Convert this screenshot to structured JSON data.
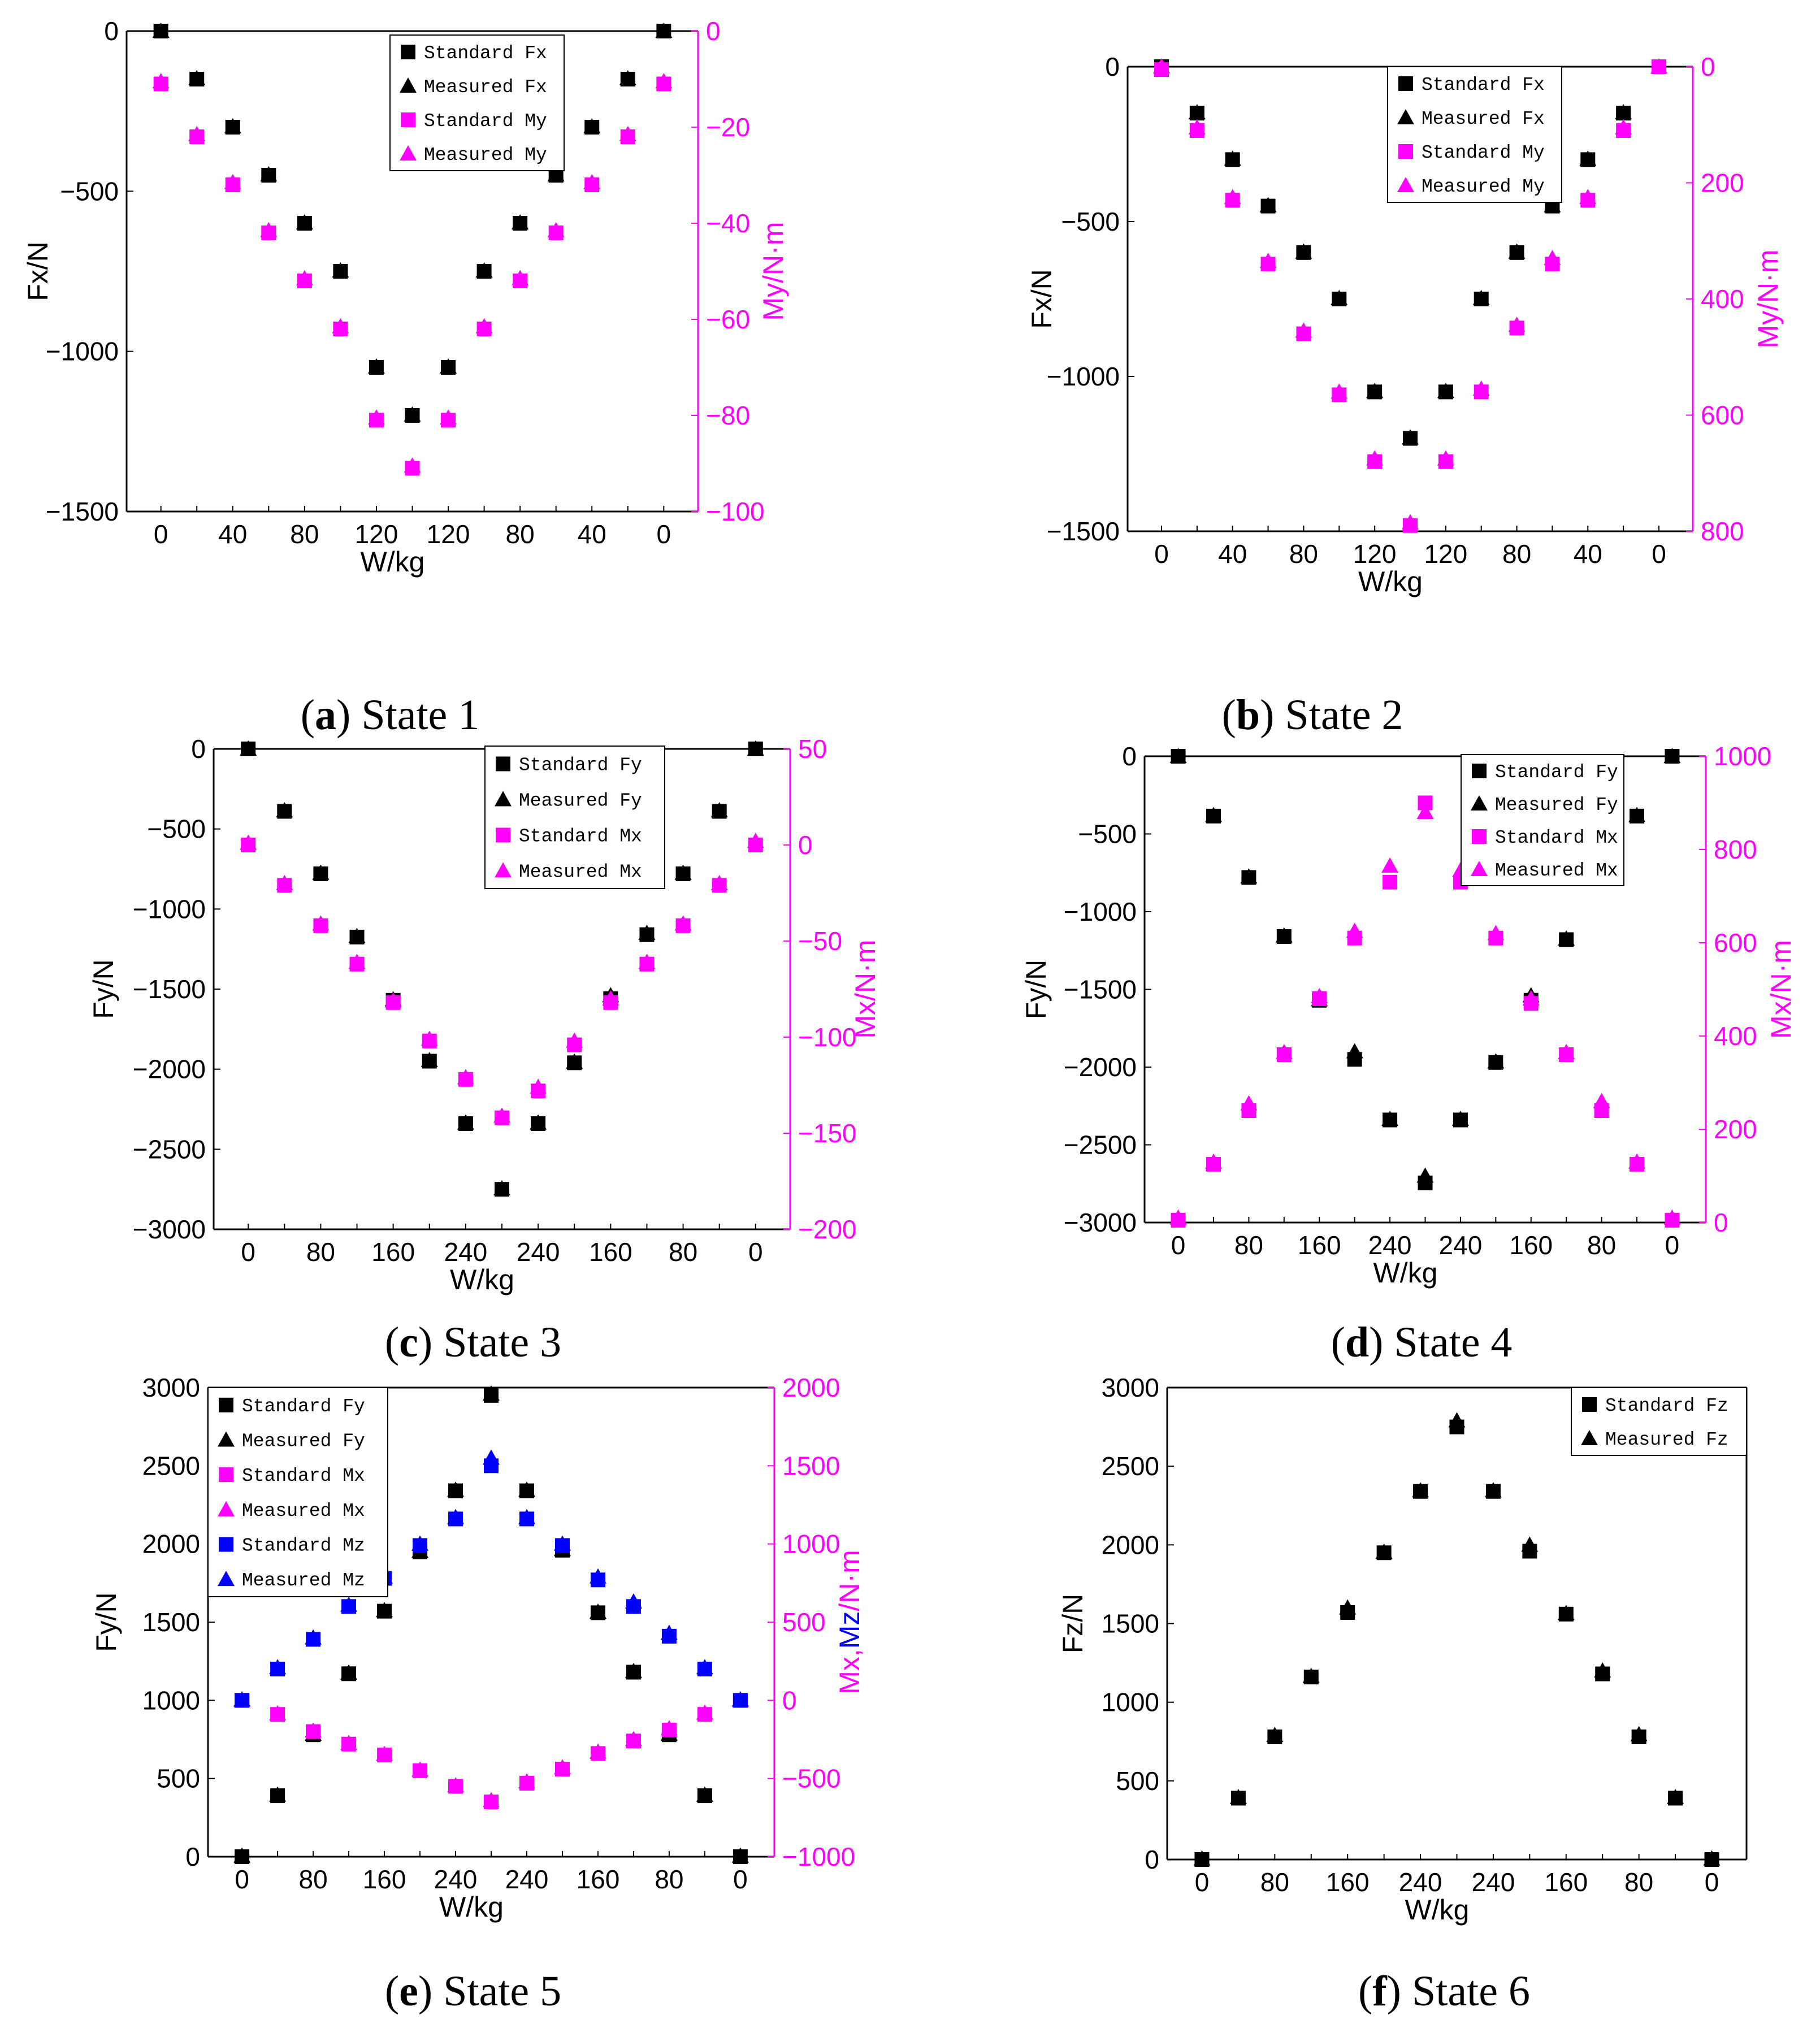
{
  "colors": {
    "black": "#000000",
    "magenta": "#ff00ff",
    "blue": "#0000ff"
  },
  "chart_data": [
    {
      "id": "a",
      "type": "scatter",
      "caption_letter": "a",
      "caption_text": " State 1",
      "xlabel": "W/kg",
      "ylabel": "Fx/N",
      "y2label": "My/N·m",
      "categories": [
        "0",
        "20",
        "40",
        "60",
        "80",
        "100",
        "120",
        "140",
        "120",
        "100",
        "80",
        "60",
        "40",
        "20",
        "0"
      ],
      "xticks": [
        "0",
        "",
        "40",
        "",
        "80",
        "",
        "120",
        "",
        "120",
        "",
        "80",
        "",
        "40",
        "",
        "0"
      ],
      "ylim": [
        -1500,
        0
      ],
      "yticks": [
        "0",
        "-500",
        "-1000",
        "-1500"
      ],
      "y2lim": [
        -100,
        0
      ],
      "y2ticks": [
        "0",
        "-20",
        "-40",
        "-60",
        "-80",
        "-100"
      ],
      "legend": [
        "Standard Fx",
        "Measured Fx",
        "Standard My",
        "Measured My"
      ],
      "series": [
        {
          "name": "Standard Fx",
          "axis": "left",
          "marker": "square",
          "color": "#000000",
          "values": [
            0,
            -150,
            -300,
            -450,
            -600,
            -750,
            -1050,
            -1200,
            -1050,
            -750,
            -600,
            -450,
            -300,
            -150,
            0
          ]
        },
        {
          "name": "Measured Fx",
          "axis": "left",
          "marker": "triangle",
          "color": "#000000",
          "values": [
            0,
            -148,
            -298,
            -448,
            -598,
            -748,
            -1048,
            -1198,
            -1048,
            -748,
            -598,
            -448,
            -298,
            -148,
            0
          ]
        },
        {
          "name": "Standard My",
          "axis": "right",
          "marker": "square",
          "color": "#ff00ff",
          "values": [
            -11,
            -22,
            -32,
            -42,
            -52,
            -62,
            -81,
            -91,
            -81,
            -62,
            -52,
            -42,
            -32,
            -22,
            -11
          ]
        },
        {
          "name": "Measured My",
          "axis": "right",
          "marker": "triangle",
          "color": "#ff00ff",
          "values": [
            -10.5,
            -21.5,
            -31.5,
            -41.5,
            -51.5,
            -61.5,
            -80.5,
            -90.5,
            -80.5,
            -61.5,
            -51.5,
            -41.5,
            -31.5,
            -21.5,
            -10.5
          ]
        }
      ]
    },
    {
      "id": "b",
      "type": "scatter",
      "caption_letter": "b",
      "caption_text": " State 2",
      "xlabel": "W/kg",
      "ylabel": "Fx/N",
      "y2label": "My/N·m",
      "categories": [
        "0",
        "20",
        "40",
        "60",
        "80",
        "100",
        "120",
        "140",
        "120",
        "100",
        "80",
        "60",
        "40",
        "20",
        "0"
      ],
      "xticks": [
        "0",
        "",
        "40",
        "",
        "80",
        "",
        "120",
        "",
        "120",
        "",
        "80",
        "",
        "40",
        "",
        "0"
      ],
      "ylim": [
        -1500,
        0
      ],
      "yticks": [
        "0",
        "-500",
        "-1000",
        "-1500"
      ],
      "y2lim": [
        800,
        0
      ],
      "y2ticks": [
        "0",
        "200",
        "400",
        "600",
        "800"
      ],
      "legend": [
        "Standard Fx",
        "Measured Fx",
        "Standard My",
        "Measured My"
      ],
      "series": [
        {
          "name": "Standard Fx",
          "axis": "left",
          "marker": "square",
          "color": "#000000",
          "values": [
            0,
            -150,
            -300,
            -450,
            -600,
            -750,
            -1050,
            -1200,
            -1050,
            -750,
            -600,
            -450,
            -300,
            -150,
            0
          ]
        },
        {
          "name": "Measured Fx",
          "axis": "left",
          "marker": "triangle",
          "color": "#000000",
          "values": [
            0,
            -148,
            -298,
            -448,
            -598,
            -748,
            -1048,
            -1198,
            -1048,
            -748,
            -598,
            -448,
            -298,
            -148,
            0
          ]
        },
        {
          "name": "Standard My",
          "axis": "right",
          "marker": "square",
          "color": "#ff00ff",
          "values": [
            5,
            110,
            230,
            340,
            460,
            565,
            680,
            790,
            680,
            560,
            450,
            340,
            230,
            110,
            0
          ]
        },
        {
          "name": "Measured My",
          "axis": "right",
          "marker": "triangle",
          "color": "#ff00ff",
          "values": [
            0,
            105,
            225,
            335,
            455,
            560,
            675,
            785,
            675,
            555,
            445,
            330,
            225,
            105,
            0
          ]
        }
      ]
    },
    {
      "id": "c",
      "type": "scatter",
      "caption_letter": "c",
      "caption_text": " State 3",
      "xlabel": "W/kg",
      "ylabel": "Fy/N",
      "y2label": "Mx/N·m",
      "categories": [
        "0",
        "40",
        "80",
        "120",
        "160",
        "200",
        "240",
        "280",
        "240",
        "200",
        "160",
        "120",
        "80",
        "40",
        "0"
      ],
      "xticks": [
        "0",
        "",
        "80",
        "",
        "160",
        "",
        "240",
        "",
        "240",
        "",
        "160",
        "",
        "80",
        "",
        "0"
      ],
      "ylim": [
        -3000,
        0
      ],
      "yticks": [
        "0",
        "-500",
        "-1000",
        "-1500",
        "-2000",
        "-2500",
        "-3000"
      ],
      "y2lim": [
        -200,
        50
      ],
      "y2ticks": [
        "50",
        "0",
        "-50",
        "-100",
        "-150",
        "-200"
      ],
      "legend": [
        "Standard Fy",
        "Measured Fy",
        "Standard Mx",
        "Measured Mx"
      ],
      "series": [
        {
          "name": "Standard Fy",
          "axis": "left",
          "marker": "square",
          "color": "#000000",
          "values": [
            0,
            -390,
            -780,
            -1175,
            -1570,
            -1950,
            -2340,
            -2750,
            -2340,
            -1960,
            -1560,
            -1160,
            -780,
            -390,
            0
          ]
        },
        {
          "name": "Measured Fy",
          "axis": "left",
          "marker": "triangle",
          "color": "#000000",
          "values": [
            0,
            -385,
            -775,
            -1170,
            -1565,
            -1945,
            -2335,
            -2745,
            -2335,
            -1955,
            -1540,
            -1150,
            -775,
            -385,
            0
          ]
        },
        {
          "name": "Standard Mx",
          "axis": "right",
          "marker": "square",
          "color": "#ff00ff",
          "values": [
            0,
            -21,
            -42,
            -62,
            -82,
            -102,
            -122,
            -142,
            -128,
            -104,
            -82,
            -62,
            -42,
            -21,
            0
          ]
        },
        {
          "name": "Measured Mx",
          "axis": "right",
          "marker": "triangle",
          "color": "#ff00ff",
          "values": [
            1,
            -20,
            -41,
            -61,
            -81,
            -101,
            -121,
            -141,
            -126,
            -102,
            -80,
            -61,
            -41,
            -20,
            2
          ]
        }
      ]
    },
    {
      "id": "d",
      "type": "scatter",
      "caption_letter": "d",
      "caption_text": " State 4",
      "xlabel": "W/kg",
      "ylabel": "Fy/N",
      "y2label": "Mx/N·m",
      "categories": [
        "0",
        "40",
        "80",
        "120",
        "160",
        "200",
        "240",
        "280",
        "240",
        "200",
        "160",
        "120",
        "80",
        "40",
        "0"
      ],
      "xticks": [
        "0",
        "",
        "80",
        "",
        "160",
        "",
        "240",
        "",
        "240",
        "",
        "160",
        "",
        "80",
        "",
        "0"
      ],
      "ylim": [
        -3000,
        0
      ],
      "yticks": [
        "0",
        "-500",
        "-1000",
        "-1500",
        "-2000",
        "-2500",
        "-3000"
      ],
      "y2lim": [
        0,
        1000
      ],
      "y2ticks": [
        "1000",
        "800",
        "600",
        "400",
        "200",
        "0"
      ],
      "legend": [
        "Standard Fy",
        "Measured Fy",
        "Standard Mx",
        "Measured Mx"
      ],
      "series": [
        {
          "name": "Standard Fy",
          "axis": "left",
          "marker": "square",
          "color": "#000000",
          "values": [
            0,
            -385,
            -780,
            -1160,
            -1570,
            -1950,
            -2340,
            -2745,
            -2340,
            -1970,
            -1570,
            -1180,
            -780,
            -385,
            0
          ]
        },
        {
          "name": "Measured Fy",
          "axis": "left",
          "marker": "triangle",
          "color": "#000000",
          "values": [
            0,
            -380,
            -775,
            -1155,
            -1565,
            -1900,
            -2335,
            -2700,
            -2335,
            -1965,
            -1540,
            -1175,
            -775,
            -380,
            0
          ]
        },
        {
          "name": "Standard Mx",
          "axis": "right",
          "marker": "square",
          "color": "#ff00ff",
          "values": [
            5,
            125,
            240,
            360,
            480,
            610,
            730,
            900,
            730,
            610,
            470,
            360,
            240,
            125,
            5
          ]
        },
        {
          "name": "Measured Mx",
          "axis": "right",
          "marker": "triangle",
          "color": "#ff00ff",
          "values": [
            10,
            130,
            255,
            365,
            485,
            625,
            765,
            880,
            755,
            620,
            480,
            365,
            260,
            130,
            10
          ]
        }
      ]
    },
    {
      "id": "e",
      "type": "scatter",
      "caption_letter": "e",
      "caption_text": " State 5",
      "xlabel": "W/kg",
      "ylabel": "Fy/N",
      "y2label": "Mx,Mz/N·m",
      "categories": [
        "0",
        "40",
        "80",
        "120",
        "160",
        "200",
        "240",
        "280",
        "240",
        "200",
        "160",
        "120",
        "80",
        "40",
        "0"
      ],
      "xticks": [
        "0",
        "",
        "80",
        "",
        "160",
        "",
        "240",
        "",
        "240",
        "",
        "160",
        "",
        "80",
        "",
        "0"
      ],
      "ylim": [
        0,
        3000
      ],
      "yticks": [
        "3000",
        "2500",
        "2000",
        "1500",
        "1000",
        "500",
        "0"
      ],
      "y2lim": [
        -1000,
        2000
      ],
      "y2ticks": [
        "2000",
        "1500",
        "1000",
        "500",
        "0",
        "-500",
        "-1000"
      ],
      "legend": [
        "Standard Fy",
        "Measured Fy",
        "Standard Mx",
        "Measured Mx",
        "Standard Mz",
        "Measured Mz"
      ],
      "series": [
        {
          "name": "Standard Fy",
          "axis": "left",
          "marker": "square",
          "color": "#000000",
          "values": [
            0,
            390,
            780,
            1170,
            1570,
            1950,
            2340,
            2950,
            2340,
            1960,
            1560,
            1180,
            780,
            390,
            0
          ]
        },
        {
          "name": "Measured Fy",
          "axis": "left",
          "marker": "triangle",
          "color": "#000000",
          "values": [
            5,
            395,
            785,
            1175,
            1575,
            1955,
            2345,
            2960,
            2345,
            1965,
            1565,
            1185,
            785,
            395,
            5
          ]
        },
        {
          "name": "Standard Mx",
          "axis": "right",
          "marker": "square",
          "color": "#ff00ff",
          "values": [
            0,
            -90,
            -200,
            -280,
            -350,
            -450,
            -550,
            -650,
            -530,
            -440,
            -340,
            -260,
            -190,
            -90,
            0
          ]
        },
        {
          "name": "Measured Mx",
          "axis": "right",
          "marker": "triangle",
          "color": "#ff00ff",
          "values": [
            0,
            -85,
            -195,
            -275,
            -345,
            -445,
            -545,
            -640,
            -520,
            -430,
            -330,
            -250,
            -180,
            -80,
            0
          ]
        },
        {
          "name": "Standard Mz",
          "axis": "right",
          "marker": "square",
          "color": "#0000ff",
          "values": [
            0,
            200,
            390,
            600,
            780,
            990,
            1160,
            1500,
            1160,
            990,
            770,
            600,
            410,
            200,
            0
          ]
        },
        {
          "name": "Measured Mz",
          "axis": "right",
          "marker": "triangle",
          "color": "#0000ff",
          "values": [
            5,
            210,
            400,
            610,
            790,
            1000,
            1170,
            1550,
            1170,
            1000,
            790,
            630,
            430,
            210,
            5
          ]
        }
      ]
    },
    {
      "id": "f",
      "type": "scatter",
      "caption_letter": "f",
      "caption_text": " State 6",
      "xlabel": "W/kg",
      "ylabel": "Fz/N",
      "y2label": "",
      "categories": [
        "0",
        "40",
        "80",
        "120",
        "160",
        "200",
        "240",
        "280",
        "240",
        "200",
        "160",
        "120",
        "80",
        "40",
        "0"
      ],
      "xticks": [
        "0",
        "",
        "80",
        "",
        "160",
        "",
        "240",
        "",
        "240",
        "",
        "160",
        "",
        "80",
        "",
        "0"
      ],
      "ylim": [
        0,
        3000
      ],
      "yticks": [
        "3000",
        "2500",
        "2000",
        "1500",
        "1000",
        "500",
        "0"
      ],
      "legend": [
        "Standard Fz",
        "Measured Fz"
      ],
      "series": [
        {
          "name": "Standard Fz",
          "axis": "left",
          "marker": "square",
          "color": "#000000",
          "values": [
            0,
            390,
            780,
            1160,
            1570,
            1950,
            2340,
            2750,
            2340,
            1960,
            1560,
            1180,
            780,
            390,
            0
          ]
        },
        {
          "name": "Measured Fz",
          "axis": "left",
          "marker": "triangle",
          "color": "#000000",
          "values": [
            5,
            395,
            790,
            1165,
            1600,
            1955,
            2345,
            2790,
            2345,
            2000,
            1565,
            1200,
            795,
            395,
            5
          ]
        }
      ]
    }
  ]
}
